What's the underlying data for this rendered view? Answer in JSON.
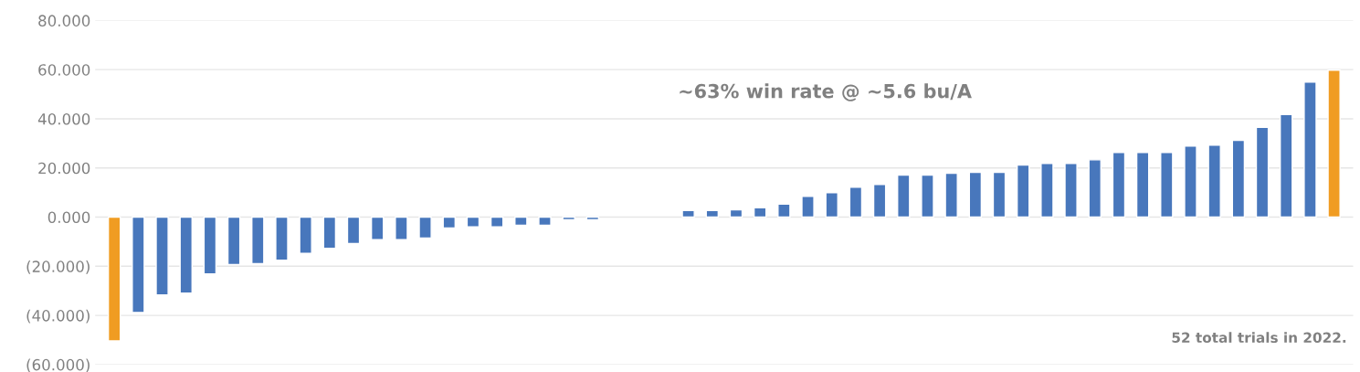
{
  "chart_data": {
    "type": "bar",
    "categories": [
      null,
      null,
      null,
      null,
      null,
      null,
      null,
      null,
      null,
      null,
      null,
      null,
      null,
      null,
      null,
      null,
      null,
      null,
      null,
      null,
      null,
      null,
      null,
      null,
      null,
      null,
      null,
      null,
      null,
      null,
      null,
      null,
      null,
      null,
      null,
      null,
      null,
      null,
      null,
      null,
      null,
      null,
      null,
      null,
      null,
      null,
      null,
      null,
      null,
      null,
      null,
      null
    ],
    "values": [
      -50.4,
      -38.8,
      -31.7,
      -30.9,
      -23.1,
      -19.3,
      -18.9,
      -17.5,
      -14.8,
      -12.7,
      -10.8,
      -9.2,
      -9.2,
      -8.5,
      -4.4,
      -4.0,
      -4.0,
      -3.3,
      -3.3,
      -1.1,
      -1.1,
      null,
      null,
      null,
      2.7,
      2.7,
      3.0,
      3.8,
      5.3,
      8.4,
      9.9,
      12.2,
      13.3,
      17.1,
      17.1,
      17.8,
      18.2,
      18.2,
      21.2,
      21.8,
      21.8,
      23.3,
      26.3,
      26.3,
      26.3,
      28.9,
      29.3,
      31.2,
      36.5,
      41.7,
      54.9,
      59.8
    ],
    "colors": [
      "#f09c22",
      "#4877bc",
      "#4877bc",
      "#4877bc",
      "#4877bc",
      "#4877bc",
      "#4877bc",
      "#4877bc",
      "#4877bc",
      "#4877bc",
      "#4877bc",
      "#4877bc",
      "#4877bc",
      "#4877bc",
      "#4877bc",
      "#4877bc",
      "#4877bc",
      "#4877bc",
      "#4877bc",
      "#4877bc",
      "#4877bc",
      "#4877bc",
      "#4877bc",
      "#4877bc",
      "#4877bc",
      "#4877bc",
      "#4877bc",
      "#4877bc",
      "#4877bc",
      "#4877bc",
      "#4877bc",
      "#4877bc",
      "#4877bc",
      "#4877bc",
      "#4877bc",
      "#4877bc",
      "#4877bc",
      "#4877bc",
      "#4877bc",
      "#4877bc",
      "#4877bc",
      "#4877bc",
      "#4877bc",
      "#4877bc",
      "#4877bc",
      "#4877bc",
      "#4877bc",
      "#4877bc",
      "#4877bc",
      "#4877bc",
      "#4877bc",
      "#f09c22"
    ],
    "ylim": [
      -60,
      80
    ],
    "yticks": [
      {
        "value": -60,
        "label": "(60.000)"
      },
      {
        "value": -40,
        "label": "(40.000)"
      },
      {
        "value": -20,
        "label": "(20.000)"
      },
      {
        "value": 0,
        "label": "0.000"
      },
      {
        "value": 20,
        "label": "20.000"
      },
      {
        "value": 40,
        "label": "40.000"
      },
      {
        "value": 60,
        "label": "60.000"
      },
      {
        "value": 80,
        "label": "80.000"
      }
    ],
    "grid": "y",
    "tick_labels": "y",
    "annotations": [
      "~63% win rate @ ~5.6 bu/A",
      "52 total trials in 2022."
    ]
  }
}
